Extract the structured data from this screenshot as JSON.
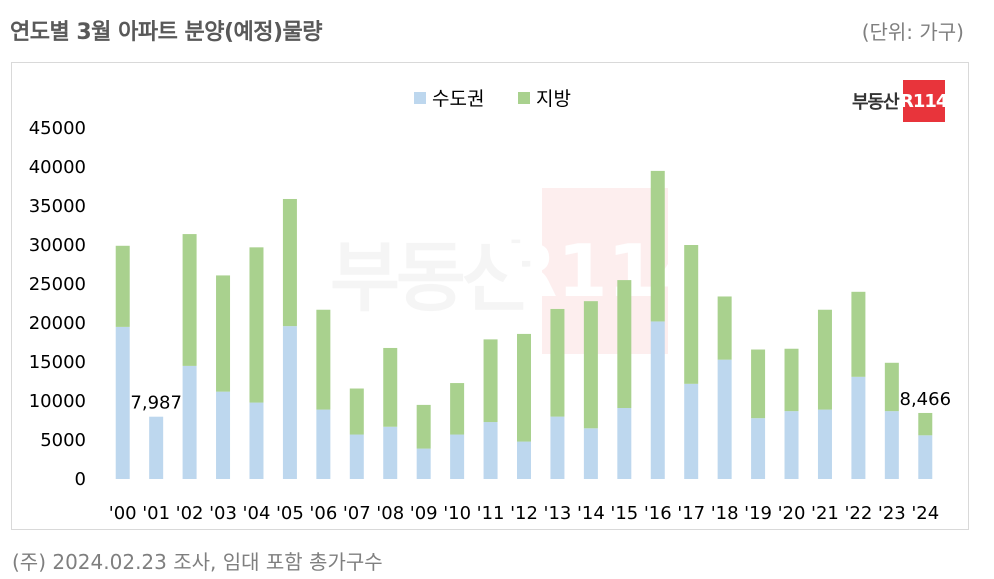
{
  "header": {
    "title": "연도별 3월 아파트 분양(예정)물량",
    "unit": "(단위: 가구)"
  },
  "brand": {
    "text": "부동산",
    "box": "R114"
  },
  "footnote": "(주) 2024.02.23 조사, 임대 포함 총가구수",
  "chart_data": {
    "type": "bar",
    "stacked": true,
    "categories": [
      "'00",
      "'01",
      "'02",
      "'03",
      "'04",
      "'05",
      "'06",
      "'07",
      "'08",
      "'09",
      "'10",
      "'11",
      "'12",
      "'13",
      "'14",
      "'15",
      "'16",
      "'17",
      "'18",
      "'19",
      "'20",
      "'21",
      "'22",
      "'23",
      "'24"
    ],
    "series": [
      {
        "name": "수도권",
        "color": "#bdd7ee",
        "values": [
          19500,
          7987,
          14500,
          11200,
          9800,
          19600,
          8900,
          5700,
          6700,
          3900,
          5700,
          7300,
          4800,
          8000,
          6500,
          9100,
          20200,
          12200,
          15300,
          7800,
          8700,
          8900,
          13100,
          8700,
          5600
        ]
      },
      {
        "name": "지방",
        "color": "#a9d18e",
        "values": [
          10400,
          0,
          16900,
          14900,
          19900,
          16300,
          12800,
          5900,
          10100,
          5600,
          6600,
          10600,
          13800,
          13800,
          16300,
          16400,
          19300,
          17800,
          8100,
          8800,
          8000,
          12800,
          10900,
          6200,
          2866
        ]
      }
    ],
    "totals": [
      29900,
      7987,
      31400,
      26100,
      29700,
      35900,
      21700,
      11600,
      16800,
      9500,
      12300,
      17900,
      18600,
      21800,
      22800,
      25500,
      39500,
      30000,
      23400,
      16600,
      16700,
      21700,
      24000,
      14900,
      8466
    ],
    "data_labels": [
      {
        "index": 1,
        "text": "7,987"
      },
      {
        "index": 24,
        "text": "8,466"
      }
    ],
    "y_ticks": [
      "0",
      "5000",
      "10000",
      "15000",
      "20000",
      "25000",
      "30000",
      "35000",
      "40000",
      "45000"
    ],
    "ylim": [
      0,
      45000
    ],
    "legend": "top-center",
    "grid": false
  }
}
